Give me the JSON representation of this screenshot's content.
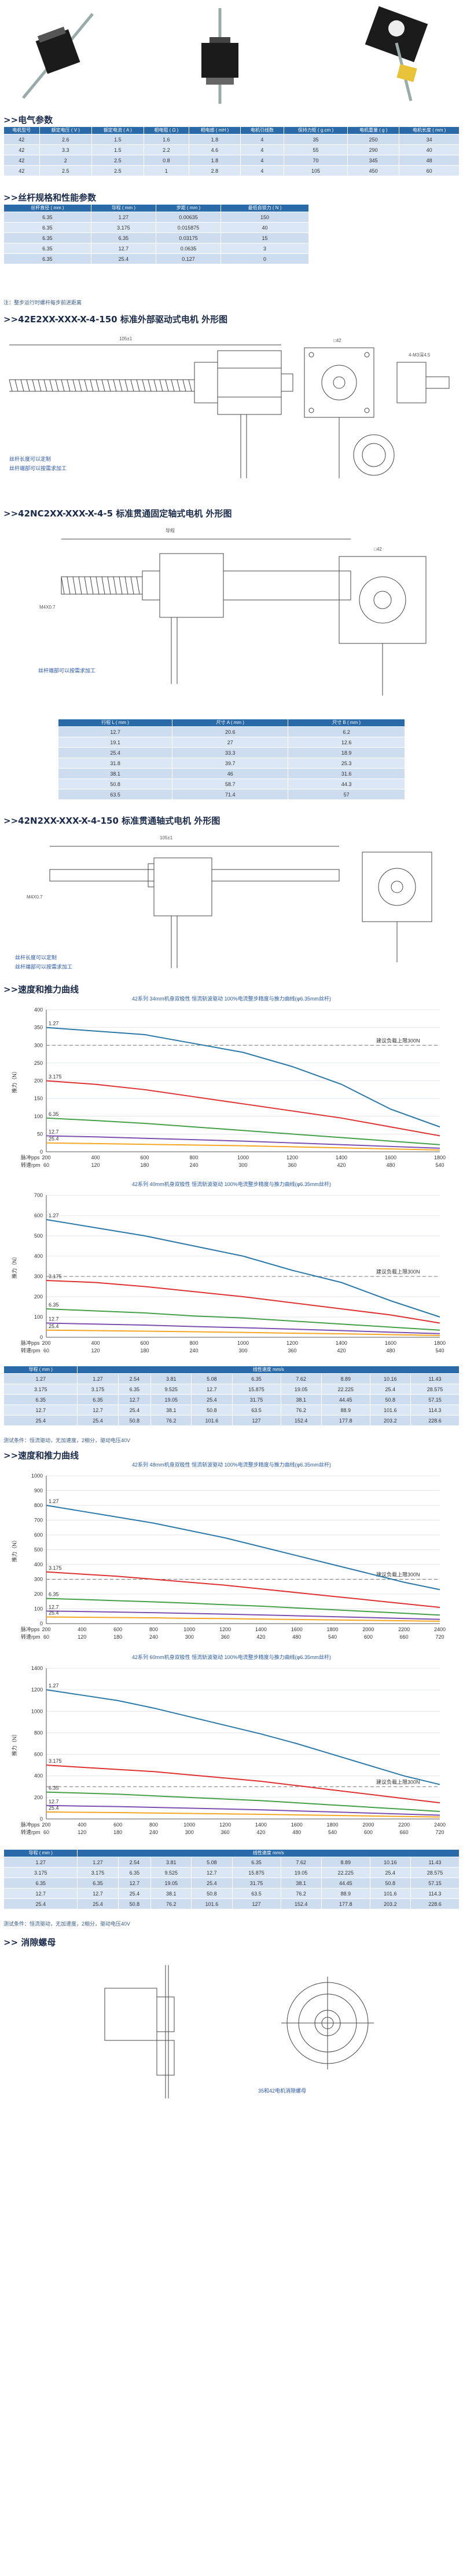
{
  "sections": {
    "electrical": ">>电气参数",
    "screw": ">>丝杆规格和性能参数",
    "motor1": ">>42E2XX-XXX-X-4-150 标准外部驱动式电机  外形图",
    "motor2": ">>42NC2XX-XXX-X-4-5 标准贯通固定轴式电机  外形图",
    "motor3": ">>42N2XX-XXX-X-4-150 标准贯通轴式电机  外形图",
    "speed1": ">>速度和推力曲线",
    "speed2": ">>速度和推力曲线",
    "antibacklash": ">> 消隙螺母"
  },
  "electrical_table": {
    "headers": [
      "电机型号",
      "额定电压 ( V )",
      "额定电流 ( A )",
      "相电阻 ( Ω )",
      "相电感 ( mH )",
      "电机引线数",
      "保持力矩 ( g.cm )",
      "电机重量 ( g )",
      "电机长度 ( mm )"
    ],
    "rows": [
      [
        "42",
        "2.6",
        "1.5",
        "1.6",
        "1.8",
        "4",
        "35",
        "250",
        "34"
      ],
      [
        "42",
        "3.3",
        "1.5",
        "2.2",
        "4.6",
        "4",
        "55",
        "290",
        "40"
      ],
      [
        "42",
        "2",
        "2.5",
        "0.8",
        "1.8",
        "4",
        "70",
        "345",
        "48"
      ],
      [
        "42",
        "2.5",
        "2.5",
        "1",
        "2.8",
        "4",
        "105",
        "450",
        "60"
      ]
    ]
  },
  "screw_table": {
    "headers": [
      "丝杆直径 ( mm )",
      "导程 ( mm )",
      "步距 ( mm )",
      "最低自锁力 ( N )"
    ],
    "rows": [
      [
        "6.35",
        "1.27",
        "0.00635",
        "150"
      ],
      [
        "6.35",
        "3.175",
        "0.015875",
        "40"
      ],
      [
        "6.35",
        "6.35",
        "0.03175",
        "15"
      ],
      [
        "6.35",
        "12.7",
        "0.0635",
        "3"
      ],
      [
        "6.35",
        "25.4",
        "0.127",
        "0"
      ]
    ],
    "note": "注：整步运行时螺杆每步前进距离"
  },
  "motor1_notes": [
    "丝杆长度可以定制",
    "丝杆端部可以按需求加工"
  ],
  "motor2_notes": [
    "丝杆端部可以按需求加工"
  ],
  "motor3_notes": [
    "丝杆长度可以定制",
    "丝杆端部可以按需求加工"
  ],
  "dims": {
    "lead_label": "导程",
    "leadscrew": "丝杆",
    "labels": [
      "105±1",
      "□42",
      "31±0.1",
      "4-M3深4.5",
      "M4X0.7",
      "螺母长度可以定制",
      "Φ22-0.05",
      "4-Φ3.5"
    ]
  },
  "size_table": {
    "headers": [
      "行程 L ( mm )",
      "尺寸 A ( mm )",
      "尺寸 B ( mm )"
    ],
    "rows": [
      [
        "12.7",
        "20.6",
        "6.2"
      ],
      [
        "19.1",
        "27",
        "12.6"
      ],
      [
        "25.4",
        "33.3",
        "18.9"
      ],
      [
        "31.8",
        "39.7",
        "25.3"
      ],
      [
        "38.1",
        "46",
        "31.6"
      ],
      [
        "50.8",
        "58.7",
        "44.3"
      ],
      [
        "63.5",
        "71.4",
        "57"
      ]
    ]
  },
  "speed_table_1": {
    "h1": "导程 ( mm )",
    "h2": "线性速度 mm/s",
    "rows": [
      [
        "1.27",
        "1.27",
        "2.54",
        "3.81",
        "5.08",
        "6.35",
        "7.62",
        "8.89",
        "10.16",
        "11.43"
      ],
      [
        "3.175",
        "3.175",
        "6.35",
        "9.525",
        "12.7",
        "15.875",
        "19.05",
        "22.225",
        "25.4",
        "28.575"
      ],
      [
        "6.35",
        "6.35",
        "12.7",
        "19.05",
        "25.4",
        "31.75",
        "38.1",
        "44.45",
        "50.8",
        "57.15"
      ],
      [
        "12.7",
        "12.7",
        "25.4",
        "38.1",
        "50.8",
        "63.5",
        "76.2",
        "88.9",
        "101.6",
        "114.3"
      ],
      [
        "25.4",
        "25.4",
        "50.8",
        "76.2",
        "101.6",
        "127",
        "152.4",
        "177.8",
        "203.2",
        "228.6"
      ]
    ],
    "note": "测试条件：恒流驱动，无加速度，2相分，驱动电压40V"
  },
  "speed_table_2": {
    "h1": "导程 ( mm )",
    "h2": "线性速度 mm/s",
    "rows": [
      [
        "1.27",
        "1.27",
        "2.54",
        "3.81",
        "5.08",
        "6.35",
        "7.62",
        "8.89",
        "10.16",
        "11.43"
      ],
      [
        "3.175",
        "3.175",
        "6.35",
        "9.525",
        "12.7",
        "15.875",
        "19.05",
        "22.225",
        "25.4",
        "28.575"
      ],
      [
        "6.35",
        "6.35",
        "12.7",
        "19.05",
        "25.4",
        "31.75",
        "38.1",
        "44.45",
        "50.8",
        "57.15"
      ],
      [
        "12.7",
        "12.7",
        "25.4",
        "38.1",
        "50.8",
        "63.5",
        "76.2",
        "88.9",
        "101.6",
        "114.3"
      ],
      [
        "25.4",
        "25.4",
        "50.8",
        "76.2",
        "101.6",
        "127",
        "152.4",
        "177.8",
        "203.2",
        "228.6"
      ]
    ],
    "note": "测试条件：恒流驱动，无加速度，2相分，驱动电压40V"
  },
  "antibacklash_caption": "35和42电机消隙螺母",
  "chart_data": [
    {
      "type": "line",
      "title": "42系列 34mm机身双极性 恒流斩波驱动 100%电流整步精度与推力曲线(φ6.35mm丝杆)",
      "ylabel": "推力（N）",
      "x_pps": [
        200,
        400,
        600,
        800,
        1000,
        1200,
        1400,
        1600,
        1800
      ],
      "x_rpm": [
        60,
        120,
        180,
        240,
        300,
        360,
        420,
        480,
        540
      ],
      "xlabel_pps": "脉冲pps",
      "xlabel_rpm": "转速rpm",
      "ylim": [
        0,
        400
      ],
      "yticks": [
        0,
        50,
        100,
        150,
        200,
        250,
        300,
        350,
        400
      ],
      "ref_label": "建议负载上限300N",
      "ref_value": 300,
      "series": [
        {
          "name": "1.27",
          "color": "#2a78a8",
          "values": [
            350,
            340,
            330,
            305,
            280,
            240,
            190,
            120,
            70
          ]
        },
        {
          "name": "3.175",
          "color": "#e03131",
          "values": [
            200,
            190,
            175,
            155,
            135,
            115,
            95,
            70,
            45
          ]
        },
        {
          "name": "6.35",
          "color": "#43a047",
          "values": [
            95,
            88,
            80,
            70,
            60,
            50,
            40,
            30,
            20
          ]
        },
        {
          "name": "12.7",
          "color": "#7b4fb0",
          "values": [
            45,
            42,
            38,
            34,
            30,
            25,
            20,
            15,
            10
          ]
        },
        {
          "name": "25.4",
          "color": "#f5a623",
          "values": [
            25,
            23,
            21,
            19,
            17,
            14,
            11,
            8,
            5
          ]
        }
      ]
    },
    {
      "type": "line",
      "title": "42系列 40mm机身双极性 恒流斩波驱动 100%电流整步精度与推力曲线(φ6.35mm丝杆)",
      "ylabel": "推力（N）",
      "x_pps": [
        200,
        400,
        600,
        800,
        1000,
        1200,
        1400,
        1600,
        1800
      ],
      "x_rpm": [
        60,
        120,
        180,
        240,
        300,
        360,
        420,
        480,
        540
      ],
      "xlabel_pps": "脉冲pps",
      "xlabel_rpm": "转速rpm",
      "ylim": [
        0,
        700
      ],
      "yticks": [
        0,
        100,
        200,
        300,
        400,
        500,
        600,
        700
      ],
      "ref_label": "建议负载上限300N",
      "ref_value": 300,
      "series": [
        {
          "name": "1.27",
          "color": "#2a78a8",
          "values": [
            580,
            540,
            500,
            450,
            400,
            330,
            270,
            180,
            100
          ]
        },
        {
          "name": "3.175",
          "color": "#e03131",
          "values": [
            280,
            270,
            250,
            225,
            200,
            170,
            140,
            110,
            70
          ]
        },
        {
          "name": "6.35",
          "color": "#43a047",
          "values": [
            140,
            130,
            120,
            105,
            95,
            80,
            65,
            50,
            35
          ]
        },
        {
          "name": "12.7",
          "color": "#7b4fb0",
          "values": [
            70,
            65,
            60,
            53,
            47,
            40,
            33,
            25,
            18
          ]
        },
        {
          "name": "25.4",
          "color": "#f5a623",
          "values": [
            35,
            33,
            30,
            27,
            24,
            20,
            17,
            13,
            9
          ]
        }
      ]
    },
    {
      "type": "line",
      "title": "42系列 48mm机身双极性 恒流斩波驱动 100%电流整步精度与推力曲线(φ6.35mm丝杆)",
      "ylabel": "推力（N）",
      "x_pps": [
        200,
        400,
        600,
        800,
        1000,
        1200,
        1400,
        1600,
        1800,
        2000,
        2200,
        2400
      ],
      "x_rpm": [
        60,
        120,
        180,
        240,
        300,
        360,
        420,
        480,
        540,
        600,
        660,
        720
      ],
      "xlabel_pps": "脉冲pps",
      "xlabel_rpm": "转速rpm",
      "ylim": [
        0,
        1000
      ],
      "yticks": [
        0,
        100,
        200,
        300,
        400,
        500,
        600,
        700,
        800,
        900,
        1000
      ],
      "ref_label": "建议负载上限300N",
      "ref_value": 300,
      "series": [
        {
          "name": "1.27",
          "color": "#2a78a8",
          "values": [
            800,
            760,
            720,
            680,
            630,
            580,
            520,
            460,
            400,
            340,
            280,
            230
          ]
        },
        {
          "name": "3.175",
          "color": "#e03131",
          "values": [
            350,
            335,
            320,
            300,
            280,
            260,
            235,
            210,
            185,
            160,
            135,
            110
          ]
        },
        {
          "name": "6.35",
          "color": "#43a047",
          "values": [
            170,
            163,
            155,
            147,
            138,
            128,
            118,
            106,
            94,
            82,
            70,
            58
          ]
        },
        {
          "name": "12.7",
          "color": "#7b4fb0",
          "values": [
            85,
            82,
            78,
            74,
            69,
            64,
            59,
            53,
            47,
            41,
            35,
            29
          ]
        },
        {
          "name": "25.4",
          "color": "#f5a623",
          "values": [
            45,
            43,
            41,
            39,
            36,
            34,
            31,
            28,
            25,
            22,
            19,
            16
          ]
        }
      ]
    },
    {
      "type": "line",
      "title": "42系列 60mm机身双极性 恒流斩波驱动 100%电流整步精度与推力曲线(φ6.35mm丝杆)",
      "ylabel": "推力（N）",
      "x_pps": [
        200,
        400,
        600,
        800,
        1000,
        1200,
        1400,
        1600,
        1800,
        2000,
        2200,
        2400
      ],
      "x_rpm": [
        60,
        120,
        180,
        240,
        300,
        360,
        420,
        480,
        540,
        600,
        660,
        720
      ],
      "xlabel_pps": "脉冲pps",
      "xlabel_rpm": "转速rpm",
      "ylim": [
        0,
        1400
      ],
      "yticks": [
        0,
        200,
        400,
        600,
        800,
        1000,
        1200,
        1400
      ],
      "ref_label": "建议负载上限300N",
      "ref_value": 300,
      "series": [
        {
          "name": "1.27",
          "color": "#2a78a8",
          "values": [
            1200,
            1150,
            1100,
            1030,
            950,
            870,
            790,
            700,
            600,
            500,
            400,
            320
          ]
        },
        {
          "name": "3.175",
          "color": "#e03131",
          "values": [
            500,
            480,
            460,
            440,
            410,
            380,
            350,
            310,
            270,
            230,
            190,
            150
          ]
        },
        {
          "name": "6.35",
          "color": "#43a047",
          "values": [
            250,
            240,
            230,
            215,
            200,
            185,
            170,
            150,
            130,
            110,
            90,
            70
          ]
        },
        {
          "name": "12.7",
          "color": "#7b4fb0",
          "values": [
            125,
            120,
            115,
            108,
            100,
            93,
            85,
            75,
            65,
            55,
            45,
            35
          ]
        },
        {
          "name": "25.4",
          "color": "#f5a623",
          "values": [
            65,
            62,
            59,
            55,
            51,
            47,
            43,
            38,
            33,
            28,
            23,
            18
          ]
        }
      ]
    }
  ]
}
